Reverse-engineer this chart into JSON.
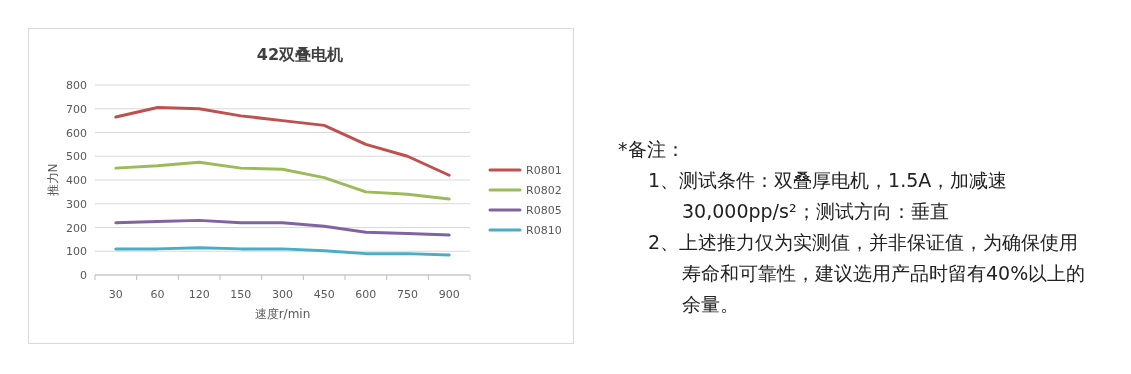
{
  "chart_data": {
    "type": "line",
    "title": "42双叠电机",
    "xlabel": "速度r/min",
    "ylabel": "推力N",
    "categories": [
      "30",
      "60",
      "120",
      "150",
      "300",
      "450",
      "600",
      "750",
      "900"
    ],
    "series": [
      {
        "name": "R0801",
        "color": "#c0504d",
        "values": [
          665,
          705,
          700,
          670,
          650,
          630,
          550,
          500,
          420
        ]
      },
      {
        "name": "R0802",
        "color": "#9bbb59",
        "values": [
          450,
          460,
          475,
          450,
          445,
          410,
          350,
          340,
          320
        ]
      },
      {
        "name": "R0805",
        "color": "#8064a2",
        "values": [
          220,
          225,
          230,
          220,
          220,
          205,
          180,
          175,
          168
        ]
      },
      {
        "name": "R0810",
        "color": "#4bacc6",
        "values": [
          110,
          110,
          115,
          110,
          110,
          102,
          90,
          90,
          84
        ]
      }
    ],
    "ylim": [
      0,
      800
    ],
    "yticks": [
      0,
      100,
      200,
      300,
      400,
      500,
      600,
      700,
      800
    ],
    "grid": "y",
    "legend": "right",
    "annotations": [
      "*备注：",
      "1、测试条件：双叠厚电机，1.5A，加减速 30,000pp/s²；测试方向：垂直",
      "2、上述推力仅为实测值，并非保证值，为确保使用寿命和可靠性，建议选用产品时留有40%以上的余量。"
    ]
  }
}
